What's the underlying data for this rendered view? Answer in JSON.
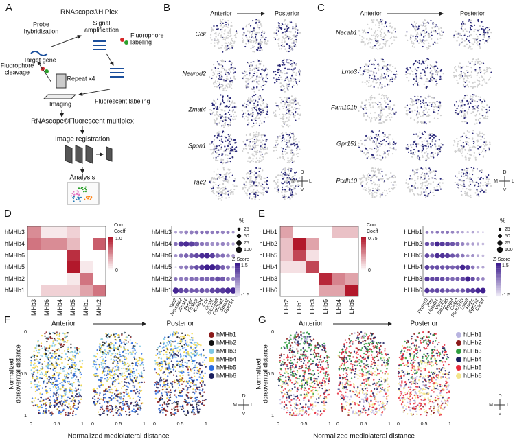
{
  "panel_labels": [
    "A",
    "B",
    "C",
    "D",
    "E",
    "F",
    "G"
  ],
  "panel_a": {
    "title": "RNAscope®HiPlex",
    "probe": [
      "Probe",
      "hybridization"
    ],
    "target": "Target gene",
    "signal": [
      "Signal",
      "amplification"
    ],
    "fluor_label": [
      "Fluorophore",
      "labeling"
    ],
    "cleavage": [
      "Fluorophore",
      "cleavage"
    ],
    "repeat": "Repeat x4",
    "fluorescent": "Fluorescent labeling",
    "imaging": "Imaging",
    "multiplex": "RNAscope®Fluorescent multiplex",
    "registration": "Image registration",
    "analysis": "Analysis"
  },
  "panel_b": {
    "anterior": "Anterior",
    "posterior": "Posterior",
    "genes": [
      "Cck",
      "Neurod2",
      "Zmat4",
      "Spon1",
      "Tac2"
    ]
  },
  "panel_c": {
    "anterior": "Anterior",
    "posterior": "Posterior",
    "genes": [
      "Necab1",
      "Lmo3",
      "Fam101b",
      "Gpr151",
      "Pcdh10"
    ]
  },
  "orientation": {
    "d": "D",
    "m": "M",
    "l": "L",
    "v": "V"
  },
  "panel_d": {
    "row_labels": [
      "hMHb3",
      "hMHb4",
      "hMHb6",
      "hMHb5",
      "hMHb2",
      "hMHb1"
    ],
    "col_labels": [
      "MHb3",
      "MHb6",
      "MHb4",
      "MHb5",
      "MHb1",
      "MHb2"
    ],
    "corr": [
      [
        0.5,
        0.1,
        0.1,
        0.2,
        0,
        0
      ],
      [
        0.6,
        0.5,
        0.5,
        0.3,
        0,
        0.7
      ],
      [
        0,
        0,
        0,
        0.9,
        0,
        0
      ],
      [
        0,
        0,
        0,
        1.0,
        0.1,
        0
      ],
      [
        0,
        0,
        0,
        0.1,
        0.6,
        0
      ],
      [
        0,
        0.2,
        0.2,
        0.2,
        0.4,
        0.6
      ]
    ],
    "colorbar_title": [
      "Corr.",
      "Coeff"
    ],
    "colorbar_ticks": [
      {
        "value": 1,
        "label": "1.0"
      },
      0
    ],
    "genes": [
      "Tac2",
      "Neurod2",
      "Zmat4",
      "Synpr",
      "Fn3krp",
      "Kcnip4",
      "Cck",
      "Ctxn1",
      "Slc18a3",
      "Col25a1",
      "Spon1",
      "Gpr151"
    ],
    "pct": [
      [
        20,
        30,
        40,
        45,
        40,
        35,
        40,
        35,
        30,
        35,
        30,
        20
      ],
      [
        40,
        80,
        85,
        80,
        70,
        50,
        45,
        40,
        35,
        40,
        35,
        25
      ],
      [
        30,
        50,
        55,
        60,
        65,
        80,
        85,
        70,
        55,
        50,
        40,
        30
      ],
      [
        10,
        40,
        45,
        50,
        60,
        75,
        90,
        95,
        80,
        60,
        45,
        20
      ],
      [
        35,
        45,
        50,
        55,
        55,
        60,
        60,
        65,
        70,
        65,
        45,
        40
      ],
      [
        90,
        70,
        65,
        60,
        60,
        65,
        60,
        70,
        75,
        80,
        90,
        95
      ]
    ],
    "z": [
      [
        -0.5,
        -0.3,
        0,
        0.1,
        0.2,
        0.3,
        0.2,
        0.1,
        0.2,
        0,
        0.1,
        -0.3
      ],
      [
        0.3,
        1.2,
        1.3,
        1.0,
        0.6,
        0.2,
        0,
        -0.2,
        -0.1,
        0,
        -0.2,
        -0.5
      ],
      [
        -0.2,
        0.2,
        0.5,
        0.6,
        0.9,
        1.3,
        1.4,
        1.0,
        0.4,
        0.3,
        0,
        -0.4
      ],
      [
        -1.2,
        0,
        0.2,
        0.4,
        0.8,
        1.2,
        1.5,
        1.5,
        1.1,
        0.5,
        0.2,
        -1
      ],
      [
        0.2,
        0.1,
        0.2,
        0.3,
        0.3,
        0.5,
        0.4,
        0.6,
        0.8,
        0.6,
        0.2,
        0
      ],
      [
        1.4,
        0.9,
        0.8,
        0.6,
        0.6,
        0.7,
        0.5,
        0.9,
        1.0,
        1.1,
        1.3,
        1.4
      ]
    ],
    "size_title": "%",
    "size_legend": [
      25,
      50,
      75,
      100
    ],
    "z_title": "Z-Score",
    "z_ticks": [
      1.5,
      -1.5
    ]
  },
  "panel_e": {
    "row_labels": [
      "hLHb1",
      "hLHb2",
      "hLHb5",
      "hLHb4",
      "hLHb3",
      "hLHb6"
    ],
    "col_labels": [
      "LHb2",
      "LHb1",
      "LHb3",
      "LHb6",
      "LHb4",
      "LHb5"
    ],
    "corr": [
      [
        0.3,
        0,
        0,
        0,
        0.2,
        0.2
      ],
      [
        0.2,
        0.75,
        0.3,
        0,
        0,
        0
      ],
      [
        0.2,
        0.6,
        0.1,
        0,
        0,
        0
      ],
      [
        0.1,
        0.1,
        0.6,
        0,
        0,
        0
      ],
      [
        0,
        0,
        0,
        0.7,
        0.4,
        0.3
      ],
      [
        0,
        0,
        0,
        0.3,
        0.3,
        0.75
      ]
    ],
    "colorbar_title": [
      "Corr.",
      "Coeff"
    ],
    "colorbar_ticks": [
      0.75,
      0
    ],
    "genes": [
      "Pcdh10",
      "Pml",
      "Necab1",
      "Vsnl1",
      "Slc12a5",
      "Bmp3",
      "Calb2",
      "Fam101b",
      "Lmo3",
      "Htr2c",
      "Gpr151",
      "Cartpt"
    ],
    "pct": [
      [
        30,
        25,
        30,
        30,
        35,
        30,
        25,
        20,
        15,
        20,
        15,
        10
      ],
      [
        60,
        55,
        85,
        75,
        70,
        60,
        55,
        40,
        30,
        30,
        25,
        20
      ],
      [
        65,
        55,
        80,
        80,
        75,
        60,
        55,
        45,
        30,
        35,
        25,
        20
      ],
      [
        70,
        60,
        65,
        60,
        60,
        55,
        60,
        85,
        70,
        45,
        30,
        25
      ],
      [
        75,
        65,
        70,
        65,
        55,
        50,
        55,
        65,
        90,
        60,
        45,
        35
      ],
      [
        80,
        65,
        70,
        65,
        60,
        55,
        55,
        60,
        70,
        75,
        85,
        90
      ]
    ],
    "z": [
      [
        0.1,
        0,
        0.2,
        0.1,
        0.2,
        0,
        -0.2,
        -0.5,
        -0.8,
        -0.5,
        -1,
        -1.2
      ],
      [
        0.8,
        0.6,
        1.4,
        1.1,
        1.0,
        0.7,
        0.5,
        0,
        -0.3,
        -0.4,
        -0.6,
        -0.8
      ],
      [
        0.9,
        0.6,
        1.3,
        1.2,
        1.1,
        0.7,
        0.5,
        0.2,
        -0.3,
        -0.2,
        -0.6,
        -0.8
      ],
      [
        1.0,
        0.8,
        0.8,
        0.7,
        0.7,
        0.5,
        0.7,
        1.4,
        1.1,
        0.2,
        -0.3,
        -0.5
      ],
      [
        1.1,
        0.9,
        0.9,
        0.8,
        0.6,
        0.4,
        0.5,
        0.9,
        1.5,
        0.8,
        0.3,
        0
      ],
      [
        1.2,
        0.8,
        0.9,
        0.8,
        0.7,
        0.5,
        0.5,
        0.7,
        1.0,
        1.1,
        1.4,
        1.5
      ]
    ],
    "size_title": "%",
    "size_legend": [
      25,
      50,
      75,
      100
    ],
    "z_title": "Z-Score",
    "z_ticks": [
      1.5,
      -1.5
    ]
  },
  "panel_f": {
    "anterior": "Anterior",
    "posterior": "Posterior",
    "ylabel": [
      "Normalized",
      "dorsoventral distance"
    ],
    "xlabel": "Normalized mediolateral distance",
    "xticks": [
      0,
      0.5,
      1
    ],
    "yticks": [
      0,
      0.5,
      1
    ],
    "legend": [
      {
        "name": "hMHb1",
        "color": "#8b1a1a"
      },
      {
        "name": "hMHb2",
        "color": "#111111"
      },
      {
        "name": "hMHb3",
        "color": "#7ec8e3"
      },
      {
        "name": "hMHb4",
        "color": "#f2d43b"
      },
      {
        "name": "hMHb5",
        "color": "#2d6ee0"
      },
      {
        "name": "hMHb6",
        "color": "#1b1f5e"
      }
    ]
  },
  "panel_g": {
    "anterior": "Anterior",
    "posterior": "Posterior",
    "ylabel": [
      "Normalized",
      "dorsoventral distance"
    ],
    "xlabel": "Normalized mediolateral distance",
    "xticks": [
      0,
      0.5,
      1
    ],
    "yticks": [
      0,
      0.5,
      1
    ],
    "legend": [
      {
        "name": "hLHb1",
        "color": "#b8b4e0"
      },
      {
        "name": "hLHb2",
        "color": "#8b1a1a"
      },
      {
        "name": "hLHb3",
        "color": "#2e9e3e"
      },
      {
        "name": "hLHb4",
        "color": "#1b1f5e"
      },
      {
        "name": "hLHb5",
        "color": "#e8283a"
      },
      {
        "name": "hLHb6",
        "color": "#f4e58a"
      }
    ]
  }
}
